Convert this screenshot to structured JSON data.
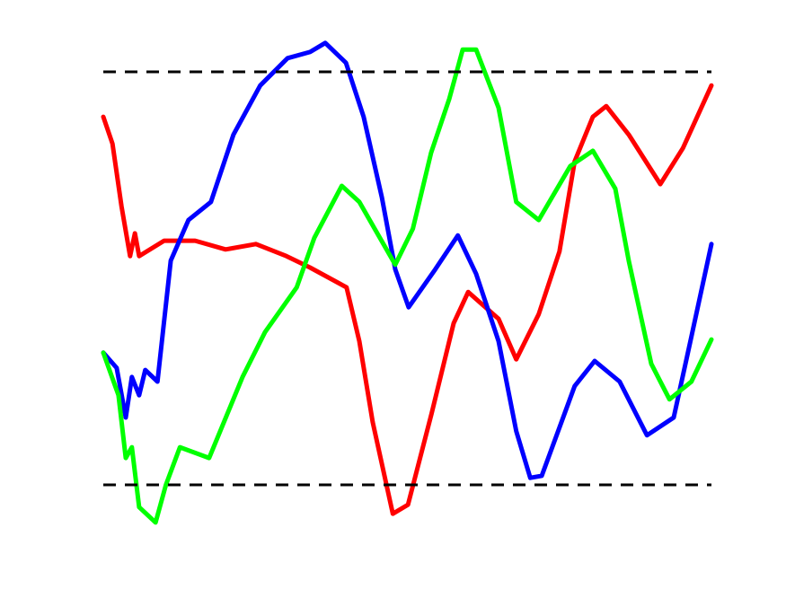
{
  "chart_data": {
    "type": "line",
    "xlim": [
      0,
      100
    ],
    "ylim": [
      -20,
      110
    ],
    "reference_lines": {
      "values": [
        0,
        100
      ],
      "color": "#000000",
      "dashed": true
    },
    "series": [
      {
        "color": "#ff0000",
        "x": [
          0,
          1.5,
          3,
          4.4,
          5.2,
          5.9,
          10,
          15.1,
          20.1,
          25.1,
          30.1,
          34,
          40,
          42.1,
          44.3,
          47.6,
          50.1,
          54,
          57.6,
          60,
          65,
          67.9,
          71.6,
          75,
          77.5,
          80.5,
          82.7,
          86.4,
          91.6,
          95.3,
          100
        ],
        "values": [
          89.1,
          82.6,
          67.4,
          55.4,
          60.9,
          55.4,
          59.1,
          59.1,
          57,
          58.3,
          55.4,
          52.6,
          47.8,
          34.8,
          15.2,
          -7,
          -4.8,
          17.4,
          39.1,
          46.7,
          40.2,
          30.4,
          41.3,
          56.5,
          78.3,
          89.1,
          91.7,
          84.8,
          72.8,
          81.5,
          96.7
        ]
      },
      {
        "color": "#0000ff",
        "x": [
          0,
          2.2,
          3.7,
          4.7,
          5.9,
          6.9,
          8.9,
          11.1,
          14,
          17.7,
          21.4,
          25.8,
          30.3,
          34,
          36.5,
          39.9,
          42.8,
          45.8,
          48,
          50.2,
          54.6,
          58.3,
          61.3,
          65,
          67.9,
          70.2,
          72.1,
          77.5,
          80.8,
          84.9,
          89.4,
          93.8,
          96.7,
          100
        ],
        "values": [
          32,
          28.3,
          16.3,
          26.1,
          21.7,
          27.8,
          25,
          54.3,
          64.1,
          68.5,
          84.8,
          96.7,
          103.3,
          104.8,
          107,
          102.2,
          89.1,
          69.6,
          52.2,
          43,
          52.2,
          60.4,
          51.1,
          34.8,
          13,
          1.7,
          2.2,
          23.9,
          30,
          25,
          12,
          16.3,
          35.9,
          58.3
        ]
      },
      {
        "color": "#00ff00",
        "x": [
          0,
          2.5,
          3.7,
          4.7,
          5.9,
          8.6,
          10.3,
          12.6,
          17.4,
          22.9,
          26.6,
          31.8,
          34.7,
          39.2,
          42.1,
          48,
          50.9,
          53.9,
          56.9,
          59.1,
          61.3,
          65,
          67.9,
          71.6,
          76.8,
          80.5,
          84.2,
          86.4,
          90.1,
          93.1,
          96.7,
          100
        ],
        "values": [
          32,
          21.7,
          6.5,
          9.1,
          -5.4,
          -9.1,
          0,
          9.1,
          6.5,
          26.1,
          37,
          47.8,
          59.8,
          72.4,
          68.5,
          53.3,
          62,
          80.4,
          93.5,
          105.4,
          105.4,
          91.3,
          68.5,
          64.1,
          77.2,
          80.9,
          71.7,
          54.3,
          29.3,
          20.7,
          25,
          35.2
        ]
      }
    ]
  }
}
